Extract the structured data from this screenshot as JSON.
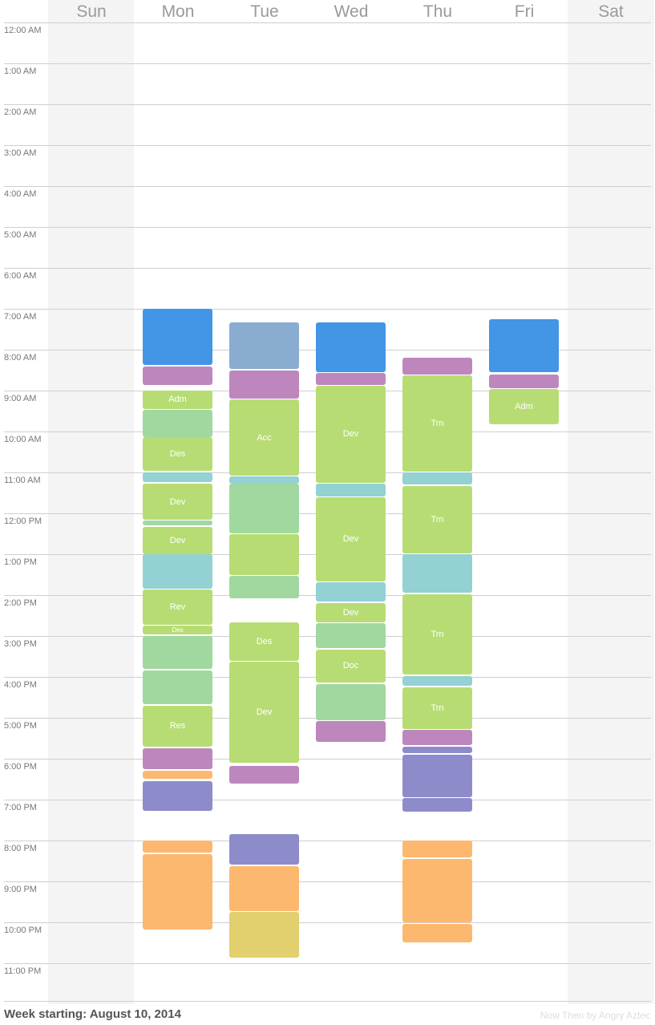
{
  "colors": {
    "blue": "#4395e6",
    "purple": "#bd87bd",
    "lime": "#b8dc74",
    "mint": "#a0d8a0",
    "cyan": "#93d1d3",
    "steel": "#8aacd0",
    "violet": "#8e8bcb",
    "orange": "#fdb870",
    "mustard": "#e2d06f"
  },
  "days": [
    "Sun",
    "Mon",
    "Tue",
    "Wed",
    "Thu",
    "Fri",
    "Sat"
  ],
  "hours": [
    "12:00 AM",
    "1:00 AM",
    "2:00 AM",
    "3:00 AM",
    "4:00 AM",
    "5:00 AM",
    "6:00 AM",
    "7:00 AM",
    "8:00 AM",
    "9:00 AM",
    "10:00 AM",
    "11:00 AM",
    "12:00 PM",
    "1:00 PM",
    "2:00 PM",
    "3:00 PM",
    "4:00 PM",
    "5:00 PM",
    "6:00 PM",
    "7:00 PM",
    "8:00 PM",
    "9:00 PM",
    "10:00 PM",
    "11:00 PM"
  ],
  "events": [
    {
      "day": 1,
      "start": "07:00",
      "end": "08:22",
      "color": "blue",
      "label": ""
    },
    {
      "day": 1,
      "start": "08:25",
      "end": "08:52",
      "color": "purple",
      "label": ""
    },
    {
      "day": 1,
      "start": "09:00",
      "end": "09:27",
      "color": "lime",
      "label": "Adm"
    },
    {
      "day": 1,
      "start": "09:28",
      "end": "10:08",
      "color": "mint",
      "label": ""
    },
    {
      "day": 1,
      "start": "10:08",
      "end": "10:58",
      "color": "lime",
      "label": "Des"
    },
    {
      "day": 1,
      "start": "11:00",
      "end": "11:14",
      "color": "cyan",
      "label": ""
    },
    {
      "day": 1,
      "start": "11:16",
      "end": "12:10",
      "color": "lime",
      "label": "Dev"
    },
    {
      "day": 1,
      "start": "12:10",
      "end": "12:18",
      "color": "mint",
      "label": ""
    },
    {
      "day": 1,
      "start": "12:20",
      "end": "12:60",
      "color": "lime",
      "label": "Dev"
    },
    {
      "day": 1,
      "start": "13:00",
      "end": "13:50",
      "color": "cyan",
      "label": ""
    },
    {
      "day": 1,
      "start": "13:52",
      "end": "14:43",
      "color": "lime",
      "label": "Rev"
    },
    {
      "day": 1,
      "start": "14:45",
      "end": "14:58",
      "color": "lime",
      "label": "Des"
    },
    {
      "day": 1,
      "start": "15:00",
      "end": "15:48",
      "color": "mint",
      "label": ""
    },
    {
      "day": 1,
      "start": "15:50",
      "end": "16:40",
      "color": "mint",
      "label": ""
    },
    {
      "day": 1,
      "start": "16:42",
      "end": "17:42",
      "color": "lime",
      "label": "Res"
    },
    {
      "day": 1,
      "start": "17:45",
      "end": "18:15",
      "color": "purple",
      "label": ""
    },
    {
      "day": 1,
      "start": "18:18",
      "end": "18:30",
      "color": "orange",
      "label": ""
    },
    {
      "day": 1,
      "start": "18:33",
      "end": "19:17",
      "color": "violet",
      "label": ""
    },
    {
      "day": 1,
      "start": "20:00",
      "end": "20:18",
      "color": "orange",
      "label": ""
    },
    {
      "day": 1,
      "start": "20:20",
      "end": "22:10",
      "color": "orange",
      "label": ""
    },
    {
      "day": 2,
      "start": "07:20",
      "end": "08:28",
      "color": "steel",
      "label": ""
    },
    {
      "day": 2,
      "start": "08:30",
      "end": "09:12",
      "color": "purple",
      "label": ""
    },
    {
      "day": 2,
      "start": "09:13",
      "end": "11:05",
      "color": "lime",
      "label": "Acc"
    },
    {
      "day": 2,
      "start": "11:06",
      "end": "11:16",
      "color": "cyan",
      "label": ""
    },
    {
      "day": 2,
      "start": "11:17",
      "end": "12:30",
      "color": "mint",
      "label": ""
    },
    {
      "day": 2,
      "start": "12:30",
      "end": "13:30",
      "color": "lime",
      "label": ""
    },
    {
      "day": 2,
      "start": "13:32",
      "end": "14:05",
      "color": "mint",
      "label": ""
    },
    {
      "day": 2,
      "start": "14:40",
      "end": "15:36",
      "color": "lime",
      "label": "Des"
    },
    {
      "day": 2,
      "start": "15:38",
      "end": "18:06",
      "color": "lime",
      "label": "Dev"
    },
    {
      "day": 2,
      "start": "18:10",
      "end": "18:36",
      "color": "purple",
      "label": ""
    },
    {
      "day": 2,
      "start": "19:51",
      "end": "20:35",
      "color": "violet",
      "label": ""
    },
    {
      "day": 2,
      "start": "20:38",
      "end": "21:43",
      "color": "orange",
      "label": ""
    },
    {
      "day": 2,
      "start": "21:45",
      "end": "22:52",
      "color": "mustard",
      "label": ""
    },
    {
      "day": 3,
      "start": "07:20",
      "end": "08:33",
      "color": "blue",
      "label": ""
    },
    {
      "day": 3,
      "start": "08:34",
      "end": "08:52",
      "color": "purple",
      "label": ""
    },
    {
      "day": 3,
      "start": "08:53",
      "end": "11:15",
      "color": "lime",
      "label": "Dev"
    },
    {
      "day": 3,
      "start": "11:16",
      "end": "11:35",
      "color": "cyan",
      "label": ""
    },
    {
      "day": 3,
      "start": "11:36",
      "end": "13:40",
      "color": "lime",
      "label": "Dev"
    },
    {
      "day": 3,
      "start": "13:41",
      "end": "14:10",
      "color": "cyan",
      "label": ""
    },
    {
      "day": 3,
      "start": "14:12",
      "end": "14:40",
      "color": "lime",
      "label": "Dev"
    },
    {
      "day": 3,
      "start": "14:41",
      "end": "15:18",
      "color": "mint",
      "label": ""
    },
    {
      "day": 3,
      "start": "15:20",
      "end": "16:08",
      "color": "lime",
      "label": "Doc"
    },
    {
      "day": 3,
      "start": "16:10",
      "end": "17:03",
      "color": "mint",
      "label": ""
    },
    {
      "day": 3,
      "start": "17:05",
      "end": "17:35",
      "color": "purple",
      "label": ""
    },
    {
      "day": 4,
      "start": "08:12",
      "end": "08:37",
      "color": "purple",
      "label": ""
    },
    {
      "day": 4,
      "start": "08:38",
      "end": "10:59",
      "color": "lime",
      "label": "Trn"
    },
    {
      "day": 4,
      "start": "11:00",
      "end": "11:18",
      "color": "cyan",
      "label": ""
    },
    {
      "day": 4,
      "start": "11:20",
      "end": "12:59",
      "color": "lime",
      "label": "Trn"
    },
    {
      "day": 4,
      "start": "13:00",
      "end": "13:57",
      "color": "cyan",
      "label": ""
    },
    {
      "day": 4,
      "start": "13:59",
      "end": "15:57",
      "color": "lime",
      "label": "Trn"
    },
    {
      "day": 4,
      "start": "15:59",
      "end": "16:13",
      "color": "cyan",
      "label": ""
    },
    {
      "day": 4,
      "start": "16:15",
      "end": "17:16",
      "color": "lime",
      "label": "Trn"
    },
    {
      "day": 4,
      "start": "17:18",
      "end": "17:40",
      "color": "purple",
      "label": ""
    },
    {
      "day": 4,
      "start": "17:42",
      "end": "17:52",
      "color": "violet",
      "label": ""
    },
    {
      "day": 4,
      "start": "17:54",
      "end": "18:56",
      "color": "violet",
      "label": ""
    },
    {
      "day": 4,
      "start": "18:58",
      "end": "19:18",
      "color": "violet",
      "label": ""
    },
    {
      "day": 4,
      "start": "20:00",
      "end": "20:25",
      "color": "orange",
      "label": ""
    },
    {
      "day": 4,
      "start": "20:27",
      "end": "22:00",
      "color": "orange",
      "label": ""
    },
    {
      "day": 4,
      "start": "22:02",
      "end": "22:30",
      "color": "orange",
      "label": ""
    },
    {
      "day": 5,
      "start": "07:15",
      "end": "08:33",
      "color": "blue",
      "label": ""
    },
    {
      "day": 5,
      "start": "08:36",
      "end": "08:56",
      "color": "purple",
      "label": ""
    },
    {
      "day": 5,
      "start": "08:58",
      "end": "09:49",
      "color": "lime",
      "label": "Adm"
    }
  ],
  "footer": {
    "week_label": "Week starting: August 10, 2014",
    "credit": "Now Then by Angry Aztec"
  }
}
